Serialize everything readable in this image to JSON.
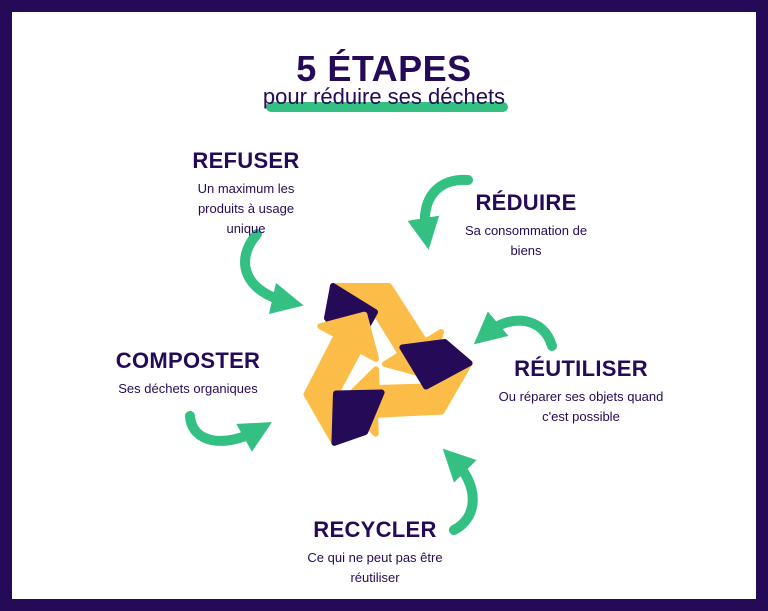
{
  "header": {
    "title": "5 ÉTAPES",
    "subtitle": "pour réduire ses déchets"
  },
  "steps": {
    "refuser": {
      "title": "REFUSER",
      "description": "Un maximum les produits à usage unique"
    },
    "reduire": {
      "title": "RÉDUIRE",
      "description": "Sa consommation de biens"
    },
    "reutiliser": {
      "title": "RÉUTILISER",
      "description": "Ou réparer ses objets quand c'est possible"
    },
    "composter": {
      "title": "COMPOSTER",
      "description": "Ses déchets organiques"
    },
    "recycler": {
      "title": "RECYCLER",
      "description": "Ce qui ne peut pas être réutiliser"
    }
  },
  "icons": [
    "recycle-icon",
    "arrow-icon"
  ],
  "colors": {
    "frame": "#240a57",
    "accent": "#34c083",
    "recycle": "#fbbd48",
    "text": "#240a57"
  }
}
